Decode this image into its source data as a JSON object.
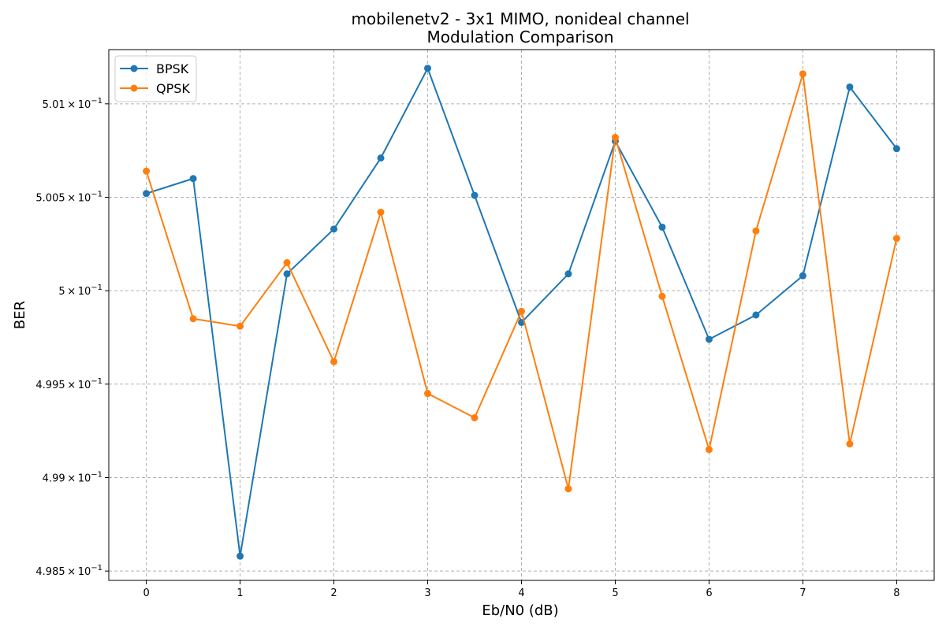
{
  "chart_data": {
    "type": "line",
    "title": "mobilenetv2 - 3x1 MIMO, nonideal channel",
    "subtitle": "Modulation Comparison",
    "xlabel": "Eb/N0 (dB)",
    "ylabel": "BER",
    "xlim": [
      -0.4,
      8.4
    ],
    "ylim": [
      0.49845,
      0.50129
    ],
    "x_ticks": [
      0,
      1,
      2,
      3,
      4,
      5,
      6,
      7,
      8
    ],
    "x_tick_labels": [
      "0",
      "1",
      "2",
      "3",
      "4",
      "5",
      "6",
      "7",
      "8"
    ],
    "y_ticks": [
      0.4985,
      0.499,
      0.4995,
      0.5,
      0.5005,
      0.501
    ],
    "y_tick_labels": [
      {
        "mantissa": "4.985",
        "base": "10",
        "exp": "−1"
      },
      {
        "mantissa": "4.99",
        "base": "10",
        "exp": "−1"
      },
      {
        "mantissa": "4.995",
        "base": "10",
        "exp": "−1"
      },
      {
        "mantissa": "5",
        "base": "10",
        "exp": "−1"
      },
      {
        "mantissa": "5.005",
        "base": "10",
        "exp": "−1"
      },
      {
        "mantissa": "5.01",
        "base": "10",
        "exp": "−1"
      }
    ],
    "grid": true,
    "legend_position": "top-left",
    "x": [
      0,
      0.5,
      1,
      1.5,
      2,
      2.5,
      3,
      3.5,
      4,
      4.5,
      5,
      5.5,
      6,
      6.5,
      7,
      7.5,
      8
    ],
    "series": [
      {
        "name": "BPSK",
        "color": "#1f77b4",
        "values": [
          0.50052,
          0.5006,
          0.49858,
          0.50009,
          0.50033,
          0.50071,
          0.50119,
          0.50051,
          0.49983,
          0.50009,
          0.5008,
          0.50034,
          0.49974,
          0.49987,
          0.50008,
          0.50109,
          0.50076
        ]
      },
      {
        "name": "QPSK",
        "color": "#ff7f0e",
        "values": [
          0.50064,
          0.49985,
          0.49981,
          0.50015,
          0.49962,
          0.50042,
          0.49945,
          0.49932,
          0.49989,
          0.49894,
          0.50082,
          0.49997,
          0.49915,
          0.50032,
          0.50116,
          0.49918,
          0.50028
        ]
      }
    ]
  }
}
